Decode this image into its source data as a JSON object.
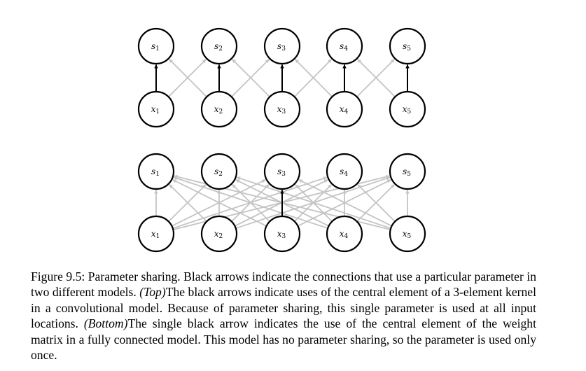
{
  "diagrams": [
    {
      "id": "top",
      "output_nodes": [
        {
          "var": "s",
          "sub": "1"
        },
        {
          "var": "s",
          "sub": "2"
        },
        {
          "var": "s",
          "sub": "3"
        },
        {
          "var": "s",
          "sub": "4"
        },
        {
          "var": "s",
          "sub": "5"
        }
      ],
      "input_nodes": [
        {
          "var": "x",
          "sub": "1"
        },
        {
          "var": "x",
          "sub": "2"
        },
        {
          "var": "x",
          "sub": "3"
        },
        {
          "var": "x",
          "sub": "4"
        },
        {
          "var": "x",
          "sub": "5"
        }
      ],
      "connectivity": "convolutional-kernel-3",
      "black_edges": "all-central",
      "edge_colors": {
        "highlight": "#000000",
        "other": "#c4c4c4"
      }
    },
    {
      "id": "bottom",
      "output_nodes": [
        {
          "var": "s",
          "sub": "1"
        },
        {
          "var": "s",
          "sub": "2"
        },
        {
          "var": "s",
          "sub": "3"
        },
        {
          "var": "s",
          "sub": "4"
        },
        {
          "var": "s",
          "sub": "5"
        }
      ],
      "input_nodes": [
        {
          "var": "x",
          "sub": "1"
        },
        {
          "var": "x",
          "sub": "2"
        },
        {
          "var": "x",
          "sub": "3"
        },
        {
          "var": "x",
          "sub": "4"
        },
        {
          "var": "x",
          "sub": "5"
        }
      ],
      "connectivity": "fully-connected",
      "black_edges": "single-x3-to-s3",
      "edge_colors": {
        "highlight": "#000000",
        "other": "#c4c4c4"
      }
    }
  ],
  "caption": {
    "part1": "Figure 9.5: Parameter sharing. Black arrows indicate the connections that use a particular parameter in two different models. ",
    "top_label": "(Top)",
    "part2": "The black arrows indicate uses of the central element of a 3-element kernel in a convolutional model. Because of parameter sharing, this single parameter is used at all input locations. ",
    "bottom_label": "(Bottom)",
    "part3": "The single black arrow indicates the use of the central element of the weight matrix in a fully connected model. This model has no parameter sharing, so the parameter is used only once."
  }
}
